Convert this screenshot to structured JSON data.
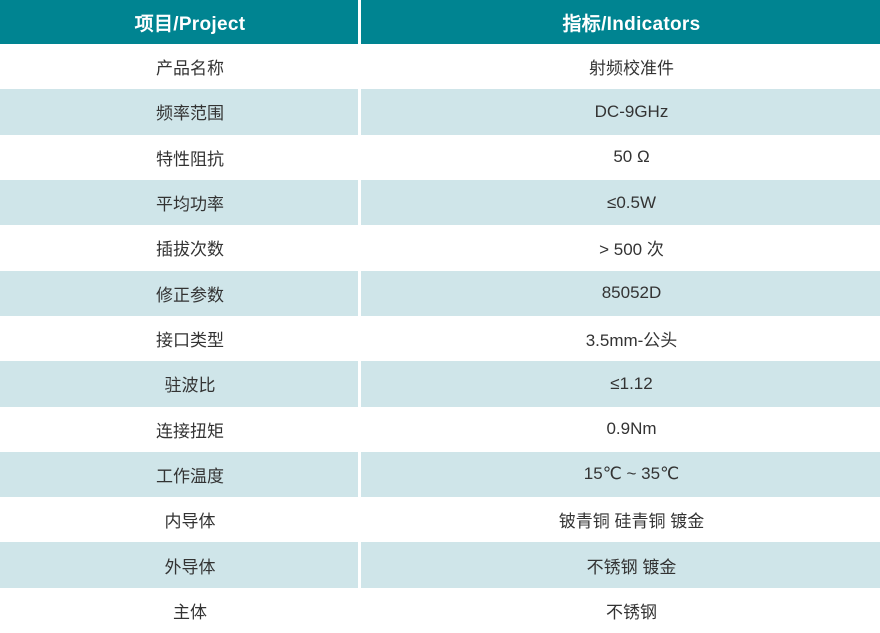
{
  "table": {
    "header": {
      "project_label": "项目/Project",
      "indicators_label": "指标/Indicators"
    },
    "rows": [
      {
        "project": "产品名称",
        "indicator": "射频校准件"
      },
      {
        "project": "频率范围",
        "indicator": "DC-9GHz"
      },
      {
        "project": "特性阻抗",
        "indicator": "50 Ω"
      },
      {
        "project": "平均功率",
        "indicator": "≤0.5W"
      },
      {
        "project": "插拔次数",
        "indicator": "> 500 次"
      },
      {
        "project": "修正参数",
        "indicator": "85052D"
      },
      {
        "project": "接口类型",
        "indicator": "3.5mm-公头"
      },
      {
        "project": "驻波比",
        "indicator": "≤1.12"
      },
      {
        "project": "连接扭矩",
        "indicator": "0.9Nm"
      },
      {
        "project": "工作温度",
        "indicator": "15℃ ~ 35℃"
      },
      {
        "project": "内导体",
        "indicator": "铍青铜 硅青铜 镀金"
      },
      {
        "project": "外导体",
        "indicator": "不锈钢 镀金"
      },
      {
        "project": "主体",
        "indicator": "不锈钢"
      }
    ],
    "colors": {
      "header_bg": "#008491",
      "header_text": "#ffffff",
      "row_bg": "#ffffff",
      "row_alt_bg": "#cfe5e9",
      "body_text": "#333333",
      "divider": "#ffffff"
    }
  }
}
